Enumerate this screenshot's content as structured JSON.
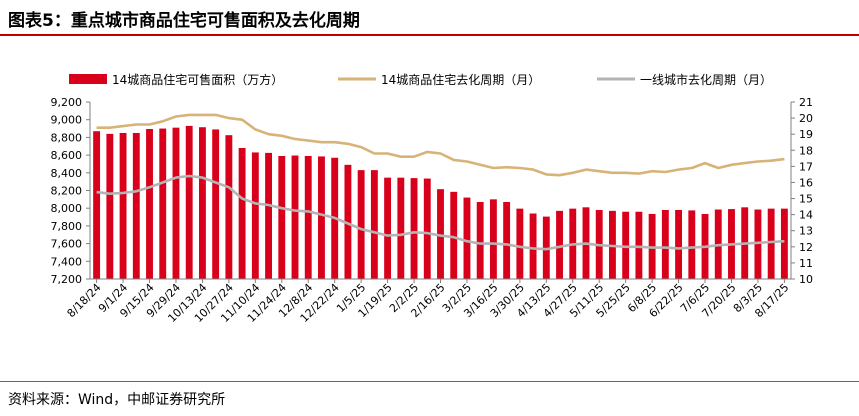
{
  "header": {
    "title": "图表5：重点城市商品住宅可售面积及去化周期"
  },
  "footer": {
    "source": "资料来源：Wind，中邮证券研究所"
  },
  "colors": {
    "bar": "#d9001b",
    "line_14": "#d8b377",
    "line_tier1": "#b4b4b4",
    "rule": "#c00000"
  },
  "chart_data": {
    "type": "bar+line",
    "title": "",
    "legend_position": "top",
    "grid": false,
    "y_left": {
      "min": 7200,
      "max": 9200,
      "step": 200,
      "labels": [
        "7,200",
        "7,400",
        "7,600",
        "7,800",
        "8,000",
        "8,200",
        "8,400",
        "8,600",
        "8,800",
        "9,000",
        "9,200"
      ]
    },
    "y_right": {
      "min": 10,
      "max": 21,
      "step": 1,
      "labels": [
        "10",
        "11",
        "12",
        "13",
        "14",
        "15",
        "16",
        "17",
        "18",
        "19",
        "20",
        "21"
      ]
    },
    "x_tick_labels": [
      "8/18/24",
      "9/1/24",
      "9/15/24",
      "9/29/24",
      "10/13/24",
      "10/27/24",
      "11/10/24",
      "11/24/24",
      "12/8/24",
      "12/22/24",
      "1/5/25",
      "1/19/25",
      "2/2/25",
      "2/16/25",
      "3/2/25",
      "3/16/25",
      "3/30/25",
      "4/13/25",
      "4/27/25",
      "5/11/25",
      "5/25/25",
      "6/8/25",
      "6/22/25",
      "7/6/25",
      "7/20/25",
      "8/3/25",
      "8/17/25"
    ],
    "series": [
      {
        "name": "14城商品住宅可售面积（万方）",
        "type": "bar",
        "axis": "left",
        "values": [
          8870,
          8840,
          8850,
          8850,
          8895,
          8900,
          8910,
          8930,
          8915,
          8890,
          8825,
          8680,
          8630,
          8625,
          8590,
          8595,
          8590,
          8585,
          8570,
          8490,
          8430,
          8430,
          8345,
          8345,
          8340,
          8335,
          8215,
          8185,
          8120,
          8070,
          8100,
          8070,
          7995,
          7940,
          7905,
          7970,
          7995,
          8010,
          7980,
          7970,
          7960,
          7960,
          7935,
          7980,
          7980,
          7975,
          7935,
          7985,
          7990,
          8010,
          7985,
          7995,
          7995
        ]
      },
      {
        "name": "14城商品住宅去化周期（月）",
        "type": "line",
        "axis": "right",
        "values": [
          19.4,
          19.4,
          19.5,
          19.6,
          19.6,
          19.8,
          20.1,
          20.2,
          20.2,
          20.2,
          20.0,
          19.9,
          19.3,
          19.0,
          18.9,
          18.7,
          18.6,
          18.5,
          18.5,
          18.4,
          18.2,
          17.8,
          17.8,
          17.6,
          17.6,
          17.9,
          17.8,
          17.4,
          17.3,
          17.1,
          16.9,
          16.95,
          16.9,
          16.8,
          16.5,
          16.45,
          16.6,
          16.8,
          16.7,
          16.6,
          16.6,
          16.55,
          16.7,
          16.65,
          16.8,
          16.9,
          17.2,
          16.9,
          17.1,
          17.2,
          17.3,
          17.35,
          17.45
        ]
      },
      {
        "name": "一线城市去化周期（月）",
        "type": "line",
        "axis": "right",
        "values": [
          15.4,
          15.3,
          15.35,
          15.45,
          15.7,
          16.0,
          16.3,
          16.4,
          16.3,
          16.0,
          15.7,
          15.0,
          14.7,
          14.6,
          14.4,
          14.25,
          14.2,
          14.0,
          13.8,
          13.45,
          13.1,
          12.9,
          12.7,
          12.75,
          12.9,
          12.85,
          12.7,
          12.6,
          12.35,
          12.2,
          12.2,
          12.15,
          12.0,
          11.9,
          11.85,
          12.0,
          12.15,
          12.2,
          12.1,
          12.05,
          12.0,
          12.0,
          11.95,
          11.95,
          11.9,
          11.95,
          12.0,
          12.1,
          12.15,
          12.2,
          12.25,
          12.3,
          12.35
        ]
      }
    ]
  }
}
